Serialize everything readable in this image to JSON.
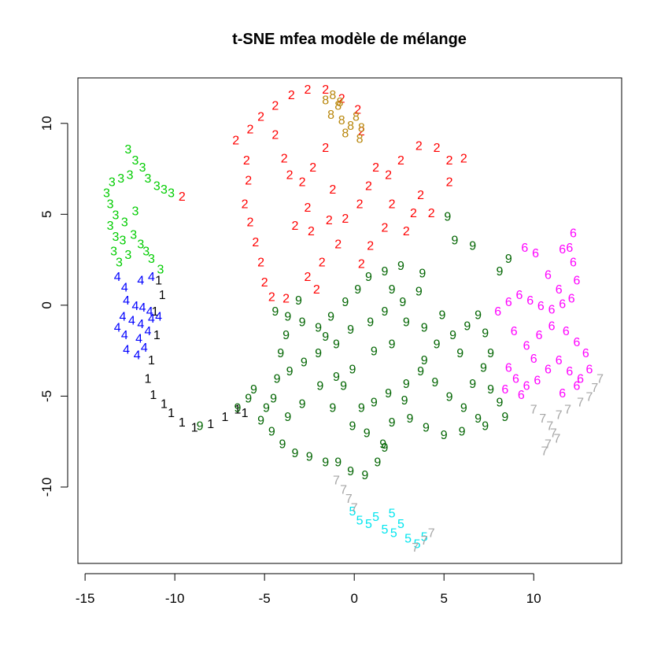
{
  "chart_data": {
    "type": "scatter",
    "title": "t-SNE mfea modèle de mélange",
    "xlabel": "",
    "ylabel": "",
    "xlim": [
      -15.4,
      14.9
    ],
    "ylim": [
      -14.2,
      12.5
    ],
    "x_ticks": [
      -15,
      -10,
      -5,
      0,
      5,
      10
    ],
    "y_ticks": [
      -10,
      -5,
      0,
      5,
      10
    ],
    "grid": false,
    "legend": "none",
    "marker": "digit label",
    "colors": {
      "1": "#000000",
      "2": "#ff0000",
      "3": "#00cc00",
      "4": "#0000ff",
      "5": "#00e5ee",
      "6": "#ff00ff",
      "7": "#a6a6a6",
      "8": "#b8860b",
      "9": "#006400"
    },
    "series": [
      {
        "label": "1",
        "points": [
          [
            -10.9,
            1.4
          ],
          [
            -10.7,
            0.6
          ],
          [
            -11.1,
            -0.3
          ],
          [
            -11.0,
            -1.6
          ],
          [
            -11.3,
            -3.0
          ],
          [
            -11.5,
            -4.0
          ],
          [
            -11.2,
            -4.9
          ],
          [
            -10.6,
            -5.4
          ],
          [
            -10.2,
            -5.9
          ],
          [
            -9.6,
            -6.4
          ],
          [
            -8.9,
            -6.7
          ],
          [
            -8.0,
            -6.5
          ],
          [
            -7.2,
            -6.1
          ],
          [
            -6.5,
            -5.7
          ],
          [
            -6.1,
            -5.9
          ]
        ]
      },
      {
        "label": "2",
        "points": [
          [
            -6.6,
            9.1
          ],
          [
            -5.8,
            9.7
          ],
          [
            -5.2,
            10.4
          ],
          [
            -4.4,
            11.0
          ],
          [
            -3.5,
            11.6
          ],
          [
            -2.6,
            11.9
          ],
          [
            -1.6,
            11.9
          ],
          [
            -0.7,
            11.4
          ],
          [
            0.2,
            10.8
          ],
          [
            0.4,
            9.6
          ],
          [
            -6.0,
            8.0
          ],
          [
            -5.9,
            6.9
          ],
          [
            -6.1,
            5.6
          ],
          [
            -5.8,
            4.6
          ],
          [
            -5.5,
            3.5
          ],
          [
            -5.2,
            2.4
          ],
          [
            -5.0,
            1.3
          ],
          [
            -4.6,
            0.5
          ],
          [
            -3.8,
            0.4
          ],
          [
            -3.6,
            7.2
          ],
          [
            -2.9,
            6.8
          ],
          [
            -2.3,
            7.6
          ],
          [
            -1.6,
            8.7
          ],
          [
            -1.2,
            6.4
          ],
          [
            -2.6,
            5.4
          ],
          [
            -3.3,
            4.4
          ],
          [
            -2.4,
            4.1
          ],
          [
            -1.8,
            2.4
          ],
          [
            -2.6,
            1.6
          ],
          [
            -2.1,
            0.9
          ],
          [
            -0.9,
            3.4
          ],
          [
            -0.5,
            4.8
          ],
          [
            0.3,
            5.6
          ],
          [
            0.8,
            6.6
          ],
          [
            1.2,
            7.6
          ],
          [
            1.9,
            7.2
          ],
          [
            2.6,
            8.0
          ],
          [
            3.6,
            8.8
          ],
          [
            4.6,
            8.7
          ],
          [
            5.3,
            8.0
          ],
          [
            3.7,
            6.1
          ],
          [
            3.3,
            5.1
          ],
          [
            2.1,
            5.6
          ],
          [
            1.7,
            4.3
          ],
          [
            0.9,
            3.3
          ],
          [
            0.4,
            2.3
          ],
          [
            -4.4,
            9.4
          ],
          [
            -3.9,
            8.1
          ],
          [
            -1.4,
            4.7
          ],
          [
            2.9,
            4.1
          ],
          [
            4.3,
            5.1
          ],
          [
            5.3,
            6.8
          ],
          [
            6.1,
            8.1
          ],
          [
            -9.6,
            6.0
          ]
        ]
      },
      {
        "label": "3",
        "points": [
          [
            -12.6,
            8.6
          ],
          [
            -12.2,
            8.0
          ],
          [
            -11.8,
            7.6
          ],
          [
            -11.5,
            7.0
          ],
          [
            -11.0,
            6.6
          ],
          [
            -10.6,
            6.4
          ],
          [
            -10.2,
            6.2
          ],
          [
            -12.5,
            7.2
          ],
          [
            -13.0,
            7.0
          ],
          [
            -13.5,
            6.8
          ],
          [
            -13.8,
            6.2
          ],
          [
            -13.6,
            5.6
          ],
          [
            -13.3,
            5.0
          ],
          [
            -13.6,
            4.4
          ],
          [
            -13.3,
            3.8
          ],
          [
            -12.9,
            3.6
          ],
          [
            -12.3,
            3.9
          ],
          [
            -11.9,
            3.4
          ],
          [
            -11.6,
            3.0
          ],
          [
            -11.3,
            2.6
          ],
          [
            -12.6,
            2.8
          ],
          [
            -13.1,
            2.4
          ],
          [
            -13.4,
            3.0
          ],
          [
            -12.8,
            4.6
          ],
          [
            -12.2,
            5.2
          ],
          [
            -10.8,
            2.0
          ]
        ]
      },
      {
        "label": "4",
        "points": [
          [
            -13.2,
            1.6
          ],
          [
            -12.8,
            1.0
          ],
          [
            -11.9,
            1.4
          ],
          [
            -11.3,
            1.6
          ],
          [
            -12.7,
            0.3
          ],
          [
            -12.2,
            0.0
          ],
          [
            -11.8,
            -0.1
          ],
          [
            -11.4,
            -0.3
          ],
          [
            -12.9,
            -0.6
          ],
          [
            -12.4,
            -0.8
          ],
          [
            -11.9,
            -1.0
          ],
          [
            -11.3,
            -0.7
          ],
          [
            -10.9,
            -0.6
          ],
          [
            -13.2,
            -1.2
          ],
          [
            -12.8,
            -1.6
          ],
          [
            -12.0,
            -1.8
          ],
          [
            -11.5,
            -1.4
          ],
          [
            -12.7,
            -2.4
          ],
          [
            -12.1,
            -2.7
          ],
          [
            -11.7,
            -2.3
          ]
        ]
      },
      {
        "label": "5",
        "points": [
          [
            -0.1,
            -11.3
          ],
          [
            0.3,
            -11.8
          ],
          [
            0.8,
            -12.0
          ],
          [
            1.2,
            -11.6
          ],
          [
            1.7,
            -12.3
          ],
          [
            2.2,
            -12.5
          ],
          [
            2.6,
            -12.0
          ],
          [
            3.0,
            -12.8
          ],
          [
            3.5,
            -13.1
          ],
          [
            3.9,
            -12.7
          ],
          [
            2.1,
            -11.4
          ]
        ]
      },
      {
        "label": "6",
        "points": [
          [
            8.0,
            -0.3
          ],
          [
            8.6,
            0.2
          ],
          [
            9.2,
            0.6
          ],
          [
            9.8,
            0.3
          ],
          [
            10.4,
            0.0
          ],
          [
            11.0,
            -0.2
          ],
          [
            11.6,
            0.1
          ],
          [
            12.1,
            0.4
          ],
          [
            12.4,
            1.4
          ],
          [
            12.2,
            2.4
          ],
          [
            12.0,
            3.2
          ],
          [
            12.2,
            4.0
          ],
          [
            11.6,
            3.1
          ],
          [
            10.8,
            1.7
          ],
          [
            10.1,
            2.9
          ],
          [
            9.5,
            3.2
          ],
          [
            8.9,
            -1.4
          ],
          [
            9.6,
            -2.2
          ],
          [
            10.3,
            -1.6
          ],
          [
            11.0,
            -1.1
          ],
          [
            11.8,
            -1.4
          ],
          [
            12.4,
            -2.0
          ],
          [
            12.9,
            -2.6
          ],
          [
            13.1,
            -3.5
          ],
          [
            12.6,
            -4.0
          ],
          [
            12.0,
            -3.6
          ],
          [
            11.4,
            -3.0
          ],
          [
            10.8,
            -3.5
          ],
          [
            10.2,
            -4.1
          ],
          [
            9.6,
            -4.4
          ],
          [
            9.0,
            -4.0
          ],
          [
            8.6,
            -3.4
          ],
          [
            8.4,
            -4.6
          ],
          [
            9.3,
            -4.9
          ],
          [
            11.6,
            -4.8
          ],
          [
            12.4,
            -4.4
          ],
          [
            10.0,
            -2.9
          ],
          [
            11.4,
            0.9
          ]
        ]
      },
      {
        "label": "7",
        "points": [
          [
            10.0,
            -5.7
          ],
          [
            10.5,
            -6.2
          ],
          [
            10.9,
            -6.6
          ],
          [
            11.1,
            -7.0
          ],
          [
            11.3,
            -7.3
          ],
          [
            10.8,
            -7.6
          ],
          [
            10.6,
            -8.0
          ],
          [
            11.4,
            -6.0
          ],
          [
            11.9,
            -5.7
          ],
          [
            12.6,
            -5.3
          ],
          [
            13.1,
            -5.0
          ],
          [
            13.4,
            -4.5
          ],
          [
            13.7,
            -4.0
          ],
          [
            -1.0,
            -9.6
          ],
          [
            -0.6,
            -10.1
          ],
          [
            -0.3,
            -10.6
          ],
          [
            0.0,
            -11.1
          ],
          [
            3.4,
            -13.3
          ],
          [
            3.9,
            -12.9
          ],
          [
            4.3,
            -12.5
          ]
        ]
      },
      {
        "label": "8",
        "points": [
          [
            -1.6,
            11.3
          ],
          [
            -1.2,
            11.6
          ],
          [
            -0.9,
            11.0
          ],
          [
            -1.3,
            10.5
          ],
          [
            -0.7,
            10.2
          ],
          [
            -0.2,
            9.9
          ],
          [
            0.4,
            9.8
          ],
          [
            0.1,
            10.4
          ],
          [
            -0.5,
            9.5
          ],
          [
            0.3,
            9.2
          ],
          [
            -0.8,
            11.2
          ]
        ]
      },
      {
        "label": "9",
        "points": [
          [
            -4.4,
            -0.3
          ],
          [
            -3.7,
            -0.6
          ],
          [
            -2.9,
            -0.9
          ],
          [
            -2.0,
            -1.2
          ],
          [
            -1.3,
            -0.6
          ],
          [
            -0.5,
            0.2
          ],
          [
            0.2,
            0.9
          ],
          [
            0.8,
            1.6
          ],
          [
            1.7,
            1.9
          ],
          [
            2.6,
            2.2
          ],
          [
            3.8,
            1.8
          ],
          [
            3.6,
            0.8
          ],
          [
            2.7,
            0.2
          ],
          [
            1.7,
            -0.3
          ],
          [
            0.9,
            -0.9
          ],
          [
            -0.2,
            -1.3
          ],
          [
            -1.0,
            -2.1
          ],
          [
            -2.0,
            -2.6
          ],
          [
            -2.8,
            -3.1
          ],
          [
            -3.6,
            -3.6
          ],
          [
            -4.3,
            -4.0
          ],
          [
            -3.8,
            -1.6
          ],
          [
            -4.1,
            -2.6
          ],
          [
            -4.5,
            -5.1
          ],
          [
            -4.9,
            -5.6
          ],
          [
            -5.2,
            -6.3
          ],
          [
            -4.6,
            -6.9
          ],
          [
            -4.0,
            -7.6
          ],
          [
            -3.3,
            -8.1
          ],
          [
            -2.5,
            -8.3
          ],
          [
            -1.6,
            -8.6
          ],
          [
            -0.9,
            -8.6
          ],
          [
            -0.2,
            -9.1
          ],
          [
            0.6,
            -9.3
          ],
          [
            1.3,
            -8.6
          ],
          [
            1.6,
            -7.6
          ],
          [
            0.7,
            -7.0
          ],
          [
            -0.1,
            -6.6
          ],
          [
            0.4,
            -5.6
          ],
          [
            1.1,
            -5.3
          ],
          [
            1.9,
            -4.8
          ],
          [
            2.9,
            -4.3
          ],
          [
            3.7,
            -3.6
          ],
          [
            4.5,
            -4.2
          ],
          [
            5.3,
            -5.0
          ],
          [
            6.1,
            -5.6
          ],
          [
            6.9,
            -6.2
          ],
          [
            7.3,
            -6.6
          ],
          [
            6.0,
            -6.9
          ],
          [
            5.0,
            -7.1
          ],
          [
            4.0,
            -6.7
          ],
          [
            3.1,
            -6.2
          ],
          [
            2.1,
            -6.4
          ],
          [
            1.7,
            -7.8
          ],
          [
            2.8,
            -5.2
          ],
          [
            3.9,
            -3.0
          ],
          [
            4.6,
            -2.1
          ],
          [
            5.5,
            -1.6
          ],
          [
            6.3,
            -1.1
          ],
          [
            6.9,
            -0.5
          ],
          [
            7.3,
            -1.5
          ],
          [
            7.6,
            -2.6
          ],
          [
            7.2,
            -3.4
          ],
          [
            6.6,
            -4.3
          ],
          [
            7.6,
            -4.6
          ],
          [
            8.1,
            -5.3
          ],
          [
            8.4,
            -6.1
          ],
          [
            5.9,
            -2.6
          ],
          [
            4.9,
            -0.5
          ],
          [
            3.9,
            -1.2
          ],
          [
            1.1,
            -2.5
          ],
          [
            2.1,
            -2.1
          ],
          [
            -0.1,
            -3.5
          ],
          [
            -1.0,
            -3.9
          ],
          [
            -1.9,
            -4.4
          ],
          [
            -2.9,
            -5.4
          ],
          [
            -3.7,
            -6.1
          ],
          [
            -1.2,
            -5.6
          ],
          [
            -0.6,
            -4.4
          ],
          [
            -1.6,
            -1.7
          ],
          [
            2.1,
            0.9
          ],
          [
            2.9,
            -0.9
          ],
          [
            6.6,
            3.3
          ],
          [
            5.6,
            3.6
          ],
          [
            5.2,
            4.9
          ],
          [
            8.6,
            2.6
          ],
          [
            8.1,
            1.9
          ],
          [
            -5.9,
            -5.1
          ],
          [
            -6.5,
            -5.6
          ],
          [
            -8.6,
            -6.6
          ],
          [
            -5.6,
            -4.6
          ],
          [
            -3.1,
            0.3
          ]
        ]
      }
    ]
  }
}
